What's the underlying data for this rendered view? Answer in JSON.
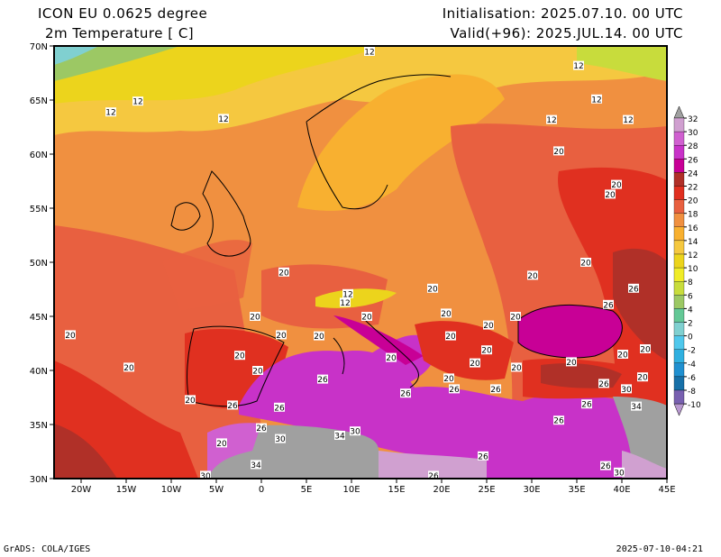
{
  "header": {
    "model": "ICON EU 0.0625 degree",
    "variable": "2m Temperature [ C]",
    "init": "Initialisation: 2025.07.10. 00 UTC",
    "valid": "Valid(+96): 2025.JUL.14. 00 UTC"
  },
  "footer": {
    "credit": "GrADS: COLA/IGES",
    "timestamp": "2025-07-10-04:21"
  },
  "map_data": {
    "type": "heatmap",
    "lon_range": [
      -23,
      45
    ],
    "lat_range": [
      30,
      70
    ],
    "lat_ticks": [
      {
        "v": 70,
        "label": "70N"
      },
      {
        "v": 65,
        "label": "65N"
      },
      {
        "v": 60,
        "label": "60N"
      },
      {
        "v": 55,
        "label": "55N"
      },
      {
        "v": 50,
        "label": "50N"
      },
      {
        "v": 45,
        "label": "45N"
      },
      {
        "v": 40,
        "label": "40N"
      },
      {
        "v": 35,
        "label": "35N"
      },
      {
        "v": 30,
        "label": "30N"
      }
    ],
    "lon_ticks": [
      {
        "v": -20,
        "label": "20W"
      },
      {
        "v": -15,
        "label": "15W"
      },
      {
        "v": -10,
        "label": "10W"
      },
      {
        "v": -5,
        "label": "5W"
      },
      {
        "v": 0,
        "label": "0"
      },
      {
        "v": 5,
        "label": "5E"
      },
      {
        "v": 10,
        "label": "10E"
      },
      {
        "v": 15,
        "label": "15E"
      },
      {
        "v": 20,
        "label": "20E"
      },
      {
        "v": 25,
        "label": "25E"
      },
      {
        "v": 30,
        "label": "30E"
      },
      {
        "v": 35,
        "label": "35E"
      },
      {
        "v": 40,
        "label": "40E"
      },
      {
        "v": 45,
        "label": "45E"
      }
    ],
    "colorbar": {
      "labels": [
        "32",
        "30",
        "28",
        "26",
        "24",
        "22",
        "20",
        "18",
        "16",
        "14",
        "12",
        "10",
        "8",
        "6",
        "4",
        "2",
        "0",
        "-2",
        "-4",
        "-6",
        "-8",
        "-10"
      ],
      "colors": [
        "#d0a0d0",
        "#d060d0",
        "#c832c8",
        "#c80096",
        "#b03028",
        "#e03020",
        "#e86040",
        "#f09040",
        "#f8b030",
        "#f5c840",
        "#ecd41c",
        "#f0ec28",
        "#c8dc3c",
        "#9cc864",
        "#64c896",
        "#80d0d0",
        "#50c8ec",
        "#30b0e0",
        "#2090d0",
        "#1870a8",
        "#7860b0"
      ],
      "over_color": "#a0a0a0",
      "under_color": "#b898d0"
    },
    "contour_labels": [
      {
        "lon": 12.0,
        "lat": 69.5,
        "t": "12"
      },
      {
        "lon": 35.2,
        "lat": 68.2,
        "t": "12"
      },
      {
        "lon": -13.7,
        "lat": 64.9,
        "t": "12"
      },
      {
        "lon": -16.7,
        "lat": 63.9,
        "t": "12"
      },
      {
        "lon": -4.2,
        "lat": 63.3,
        "t": "12"
      },
      {
        "lon": 37.2,
        "lat": 65.1,
        "t": "12"
      },
      {
        "lon": 32.2,
        "lat": 63.2,
        "t": "12"
      },
      {
        "lon": 40.7,
        "lat": 63.2,
        "t": "12"
      },
      {
        "lon": 33.0,
        "lat": 60.3,
        "t": "20"
      },
      {
        "lon": 39.4,
        "lat": 57.2,
        "t": "20"
      },
      {
        "lon": 38.7,
        "lat": 56.3,
        "t": "20"
      },
      {
        "lon": 2.5,
        "lat": 49.1,
        "t": "20"
      },
      {
        "lon": 9.6,
        "lat": 47.1,
        "t": "12"
      },
      {
        "lon": 9.3,
        "lat": 46.3,
        "t": "12"
      },
      {
        "lon": 19.0,
        "lat": 47.6,
        "t": "20"
      },
      {
        "lon": 30.1,
        "lat": 48.8,
        "t": "20"
      },
      {
        "lon": 36.0,
        "lat": 50.0,
        "t": "20"
      },
      {
        "lon": 41.3,
        "lat": 47.6,
        "t": "26"
      },
      {
        "lon": -0.7,
        "lat": 45.0,
        "t": "20"
      },
      {
        "lon": 2.2,
        "lat": 43.3,
        "t": "20"
      },
      {
        "lon": 6.4,
        "lat": 43.2,
        "t": "20"
      },
      {
        "lon": 11.7,
        "lat": 45.0,
        "t": "20"
      },
      {
        "lon": 20.5,
        "lat": 45.3,
        "t": "20"
      },
      {
        "lon": 25.2,
        "lat": 44.2,
        "t": "20"
      },
      {
        "lon": 28.2,
        "lat": 45.0,
        "t": "20"
      },
      {
        "lon": 38.5,
        "lat": 46.1,
        "t": "26"
      },
      {
        "lon": -21.2,
        "lat": 43.3,
        "t": "20"
      },
      {
        "lon": 21.0,
        "lat": 43.2,
        "t": "20"
      },
      {
        "lon": 25.0,
        "lat": 41.9,
        "t": "20"
      },
      {
        "lon": 42.6,
        "lat": 42.0,
        "t": "20"
      },
      {
        "lon": -2.4,
        "lat": 41.4,
        "t": "20"
      },
      {
        "lon": -14.7,
        "lat": 40.3,
        "t": "20"
      },
      {
        "lon": -0.4,
        "lat": 40.0,
        "t": "20"
      },
      {
        "lon": 14.4,
        "lat": 41.2,
        "t": "20"
      },
      {
        "lon": 23.7,
        "lat": 40.7,
        "t": "20"
      },
      {
        "lon": 28.3,
        "lat": 40.3,
        "t": "20"
      },
      {
        "lon": 34.4,
        "lat": 40.8,
        "t": "20"
      },
      {
        "lon": 40.1,
        "lat": 41.5,
        "t": "20"
      },
      {
        "lon": 42.3,
        "lat": 39.4,
        "t": "20"
      },
      {
        "lon": 6.8,
        "lat": 39.2,
        "t": "26"
      },
      {
        "lon": 20.8,
        "lat": 39.3,
        "t": "20"
      },
      {
        "lon": 21.4,
        "lat": 38.3,
        "t": "26"
      },
      {
        "lon": 16.0,
        "lat": 37.9,
        "t": "26"
      },
      {
        "lon": 26.0,
        "lat": 38.3,
        "t": "26"
      },
      {
        "lon": 38.0,
        "lat": 38.8,
        "t": "26"
      },
      {
        "lon": 40.5,
        "lat": 38.3,
        "t": "30"
      },
      {
        "lon": -7.9,
        "lat": 37.3,
        "t": "20"
      },
      {
        "lon": -3.2,
        "lat": 36.8,
        "t": "26"
      },
      {
        "lon": 2.0,
        "lat": 36.6,
        "t": "26"
      },
      {
        "lon": 36.1,
        "lat": 36.9,
        "t": "26"
      },
      {
        "lon": 41.6,
        "lat": 36.7,
        "t": "34"
      },
      {
        "lon": 33.0,
        "lat": 35.4,
        "t": "26"
      },
      {
        "lon": 0.0,
        "lat": 34.7,
        "t": "26"
      },
      {
        "lon": 10.4,
        "lat": 34.4,
        "t": "30"
      },
      {
        "lon": 8.7,
        "lat": 34.0,
        "t": "34"
      },
      {
        "lon": 2.1,
        "lat": 33.7,
        "t": "30"
      },
      {
        "lon": -4.4,
        "lat": 33.3,
        "t": "20"
      },
      {
        "lon": 24.6,
        "lat": 32.1,
        "t": "26"
      },
      {
        "lon": -0.6,
        "lat": 31.3,
        "t": "34"
      },
      {
        "lon": -6.2,
        "lat": 30.3,
        "t": "30"
      },
      {
        "lon": 19.1,
        "lat": 30.3,
        "t": "26"
      },
      {
        "lon": 38.2,
        "lat": 31.2,
        "t": "26"
      },
      {
        "lon": 39.7,
        "lat": 30.6,
        "t": "30"
      }
    ]
  }
}
